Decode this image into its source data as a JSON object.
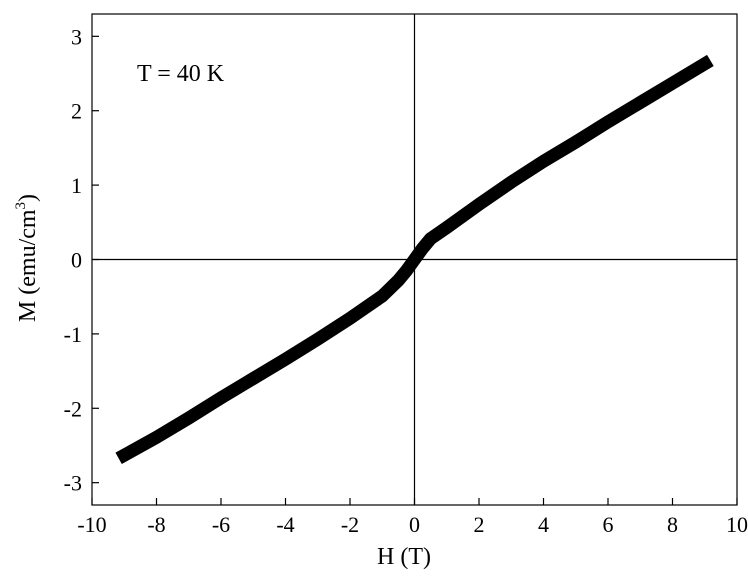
{
  "chart_data": {
    "type": "line",
    "title": "",
    "xlabel": "H (T)",
    "ylabel": "M (emu/cm",
    "ylabel_superscript": "3",
    "ylabel_close": ")",
    "annotation": "T = 40 K",
    "xlim": [
      -10,
      10
    ],
    "ylim": [
      -3.3,
      3.3
    ],
    "xticks": [
      -10,
      -8,
      -6,
      -4,
      -2,
      0,
      2,
      4,
      6,
      8,
      10
    ],
    "yticks": [
      -3,
      -2,
      -1,
      0,
      1,
      2,
      3
    ],
    "zero_lines": true,
    "grid": false,
    "legend": "none",
    "series": [
      {
        "color": "#000000",
        "x": [
          -9,
          -8,
          -7,
          -6,
          -5,
          -4,
          -3,
          -2,
          -1,
          -0.5,
          -0.25,
          0,
          0.25,
          0.5,
          1,
          2,
          3,
          4,
          5,
          6,
          7,
          8,
          9
        ],
        "y": [
          -2.63,
          -2.39,
          -2.13,
          -1.86,
          -1.6,
          -1.34,
          -1.07,
          -0.79,
          -0.49,
          -0.28,
          -0.15,
          0.0,
          0.15,
          0.28,
          0.43,
          0.74,
          1.04,
          1.32,
          1.58,
          1.85,
          2.11,
          2.37,
          2.63
        ]
      }
    ]
  }
}
